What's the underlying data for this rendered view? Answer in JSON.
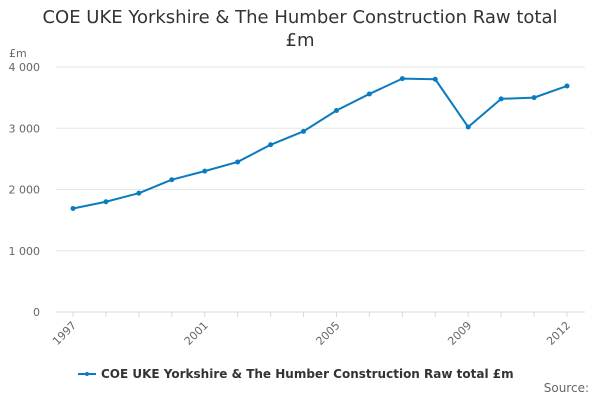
{
  "chart_data": {
    "type": "line",
    "title_lines": [
      "COE UKE Yorkshire & The Humber Construction Raw total",
      "£m"
    ],
    "unit_label": "£m",
    "x": [
      1997,
      1998,
      1999,
      2000,
      2001,
      2002,
      2003,
      2004,
      2005,
      2006,
      2007,
      2008,
      2009,
      2010,
      2011,
      2012
    ],
    "x_tick_labels": [
      "1997",
      "2001",
      "2005",
      "2009",
      "2012"
    ],
    "y_ticks": [
      0,
      1000,
      2000,
      3000,
      4000
    ],
    "y_tick_labels": [
      "0",
      "1 000",
      "2 000",
      "3 000",
      "4 000"
    ],
    "ylim": [
      0,
      4000
    ],
    "grid": true,
    "legend_position": "bottom",
    "series": [
      {
        "name": "COE UKE Yorkshire & The Humber Construction Raw total £m",
        "color": "#0b7bbf",
        "values": [
          1690,
          1800,
          1940,
          2160,
          2300,
          2450,
          2730,
          2950,
          3290,
          3560,
          3810,
          3800,
          3020,
          3480,
          3500,
          3690
        ]
      }
    ]
  },
  "source_label": "Source:"
}
